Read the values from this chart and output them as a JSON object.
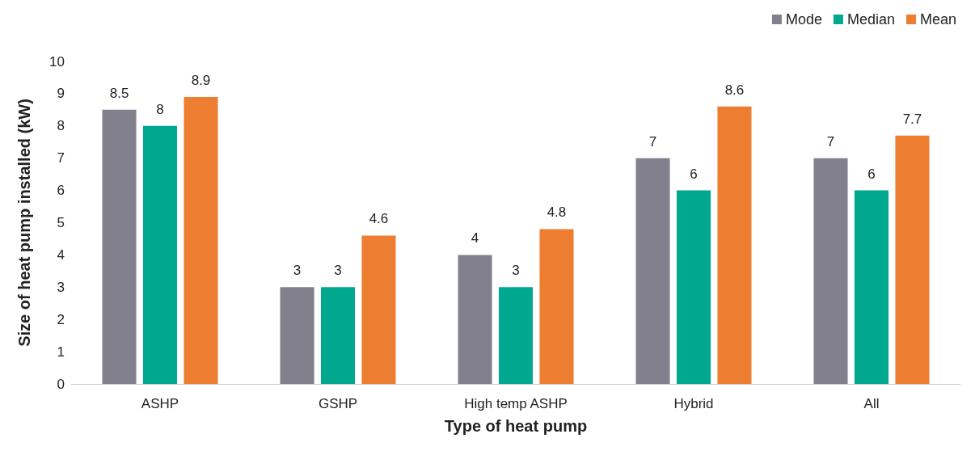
{
  "chart_data": {
    "type": "bar",
    "xlabel": "Type of heat pump",
    "ylabel": "Size of heat pump installed (kW)",
    "categories": [
      "ASHP",
      "GSHP",
      "High temp ASHP",
      "Hybrid",
      "All"
    ],
    "series": [
      {
        "name": "Mode",
        "color": "#82808d",
        "values": [
          8.5,
          3,
          4,
          7,
          7
        ]
      },
      {
        "name": "Median",
        "color": "#00a88f",
        "values": [
          8,
          3,
          3,
          6,
          6
        ]
      },
      {
        "name": "Mean",
        "color": "#ed7d31",
        "values": [
          8.9,
          4.6,
          4.8,
          8.6,
          7.7
        ]
      }
    ],
    "ylim": [
      0,
      10
    ],
    "yticks": [
      0,
      1,
      2,
      3,
      4,
      5,
      6,
      7,
      8,
      9,
      10
    ],
    "grid": false,
    "legend": "top right",
    "data_labels": true
  }
}
